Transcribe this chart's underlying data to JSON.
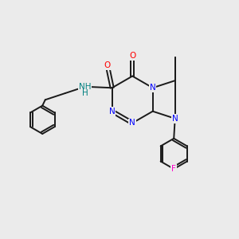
{
  "background_color": "#ebebeb",
  "bond_color": "#1a1a1a",
  "atom_colors": {
    "N": "#0000ff",
    "O": "#ff0000",
    "F": "#ff00cc",
    "NH": "#008080",
    "C": "#1a1a1a"
  },
  "figsize": [
    3.0,
    3.0
  ],
  "dpi": 100,
  "bond_lw": 1.4,
  "font_size": 7.5
}
